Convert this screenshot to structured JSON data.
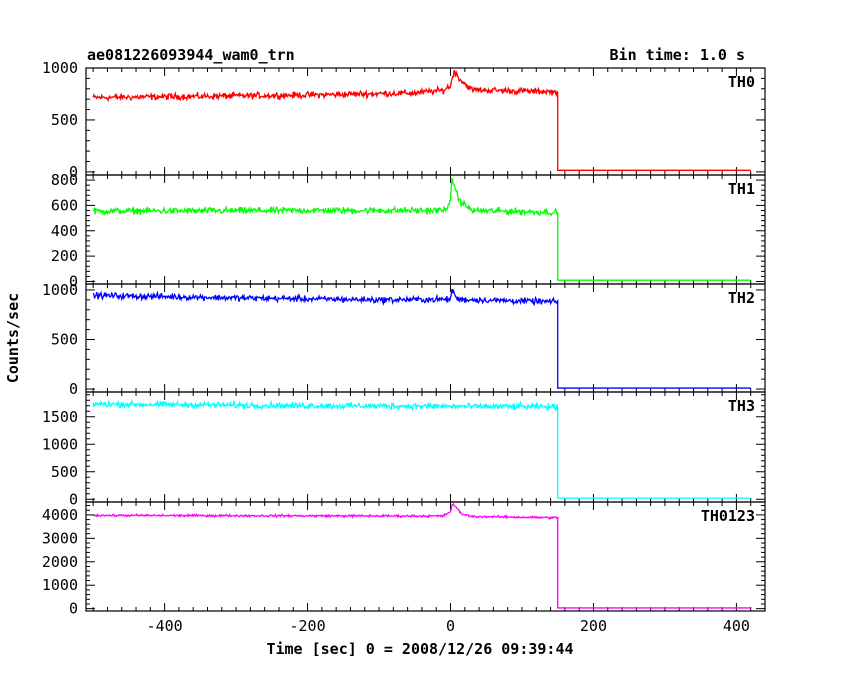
{
  "header": {
    "title": "ae081226093944_wam0_trn",
    "bin_time": "Bin time: 1.0 s"
  },
  "chart_data": {
    "type": "line",
    "xlabel": "Time [sec] 0 = 2008/12/26 09:39:44",
    "ylabel": "Counts/sec",
    "xlim": [
      -510,
      440
    ],
    "x_ticks": [
      -400,
      -200,
      0,
      200,
      400
    ],
    "x_start": -500,
    "x_end": 420,
    "data_end": 150,
    "panels": [
      {
        "name": "TH0",
        "color": "#ff0000",
        "ylim": [
          -30,
          1000
        ],
        "y_ticks": [
          0,
          500,
          1000
        ],
        "profile": [
          [
            -500,
            715
          ],
          [
            -200,
            740
          ],
          [
            -50,
            760
          ],
          [
            -10,
            785
          ],
          [
            0,
            830
          ],
          [
            5,
            965
          ],
          [
            15,
            880
          ],
          [
            30,
            790
          ],
          [
            148,
            770
          ]
        ],
        "noise": 45,
        "peak_at": 5,
        "peak_value": 980,
        "after_value": 15
      },
      {
        "name": "TH1",
        "color": "#00ff00",
        "ylim": [
          -20,
          840
        ],
        "y_ticks": [
          0,
          200,
          400,
          600,
          800
        ],
        "profile": [
          [
            -500,
            555
          ],
          [
            -200,
            560
          ],
          [
            -10,
            560
          ],
          [
            0,
            620
          ],
          [
            2,
            820
          ],
          [
            12,
            640
          ],
          [
            30,
            560
          ],
          [
            148,
            545
          ]
        ],
        "noise": 38,
        "peak_at": 2,
        "peak_value": 815,
        "after_value": 10
      },
      {
        "name": "TH2",
        "color": "#0000ff",
        "ylim": [
          -30,
          1060
        ],
        "y_ticks": [
          0,
          500,
          1000
        ],
        "profile": [
          [
            -500,
            945
          ],
          [
            -300,
            920
          ],
          [
            -100,
            900
          ],
          [
            0,
            905
          ],
          [
            2,
            1000
          ],
          [
            10,
            905
          ],
          [
            148,
            880
          ]
        ],
        "noise": 45,
        "peak_at": 2,
        "peak_value": 1010,
        "after_value": 10
      },
      {
        "name": "TH3",
        "color": "#00ffff",
        "ylim": [
          -50,
          1950
        ],
        "y_ticks": [
          0,
          500,
          1000,
          1500
        ],
        "profile": [
          [
            -500,
            1730
          ],
          [
            -200,
            1700
          ],
          [
            0,
            1690
          ],
          [
            148,
            1680
          ]
        ],
        "noise": 80,
        "peak_at": 0,
        "peak_value": 1700,
        "after_value": 20
      },
      {
        "name": "TH0123",
        "color": "#ff00ff",
        "ylim": [
          -100,
          4550
        ],
        "y_ticks": [
          0,
          1000,
          2000,
          3000,
          4000
        ],
        "profile": [
          [
            -500,
            3980
          ],
          [
            -200,
            3960
          ],
          [
            -10,
            3950
          ],
          [
            0,
            4150
          ],
          [
            3,
            4500
          ],
          [
            15,
            4050
          ],
          [
            30,
            3930
          ],
          [
            148,
            3880
          ]
        ],
        "noise": 70,
        "peak_at": 3,
        "peak_value": 4450,
        "after_value": 30
      }
    ]
  }
}
